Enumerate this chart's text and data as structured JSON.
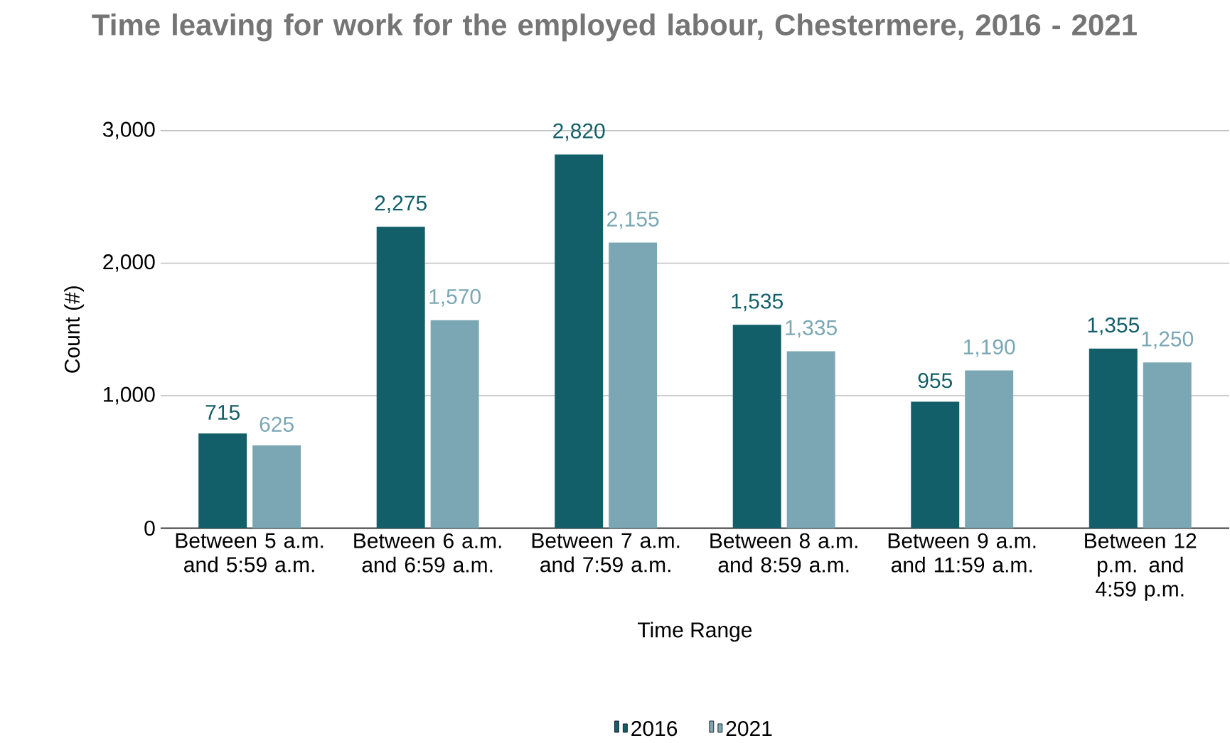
{
  "chart_data": {
    "type": "bar",
    "title": "Time leaving for work for the employed labour, Chestermere, 2016 - 2021",
    "xlabel": "Time Range",
    "ylabel": "Count (#)",
    "categories": [
      "Between 5 a.m. and 5:59 a.m.",
      "Between 6 a.m. and 6:59 a.m.",
      "Between 7 a.m. and 7:59 a.m.",
      "Between 8 a.m. and 8:59 a.m.",
      "Between 9 a.m. and 11:59 a.m.",
      "Between 12 p.m. and 4:59 p.m."
    ],
    "series": [
      {
        "name": "2016",
        "color": "#135f69",
        "values": [
          715,
          2275,
          2820,
          1535,
          955,
          1355
        ],
        "value_labels": [
          "715",
          "2,275",
          "2,820",
          "1,535",
          "955",
          "1,355"
        ]
      },
      {
        "name": "2021",
        "color": "#7ba7b4",
        "values": [
          625,
          1570,
          2155,
          1335,
          1190,
          1250
        ],
        "value_labels": [
          "625",
          "1,570",
          "2,155",
          "1,335",
          "1,190",
          "1,250"
        ]
      }
    ],
    "ylim": [
      0,
      3000
    ],
    "yticks": [
      {
        "value": 0,
        "label": "0"
      },
      {
        "value": 1000,
        "label": "1,000"
      },
      {
        "value": 2000,
        "label": "2,000"
      },
      {
        "value": 3000,
        "label": "3,000"
      }
    ],
    "grid": "y",
    "legend": "bottom"
  }
}
